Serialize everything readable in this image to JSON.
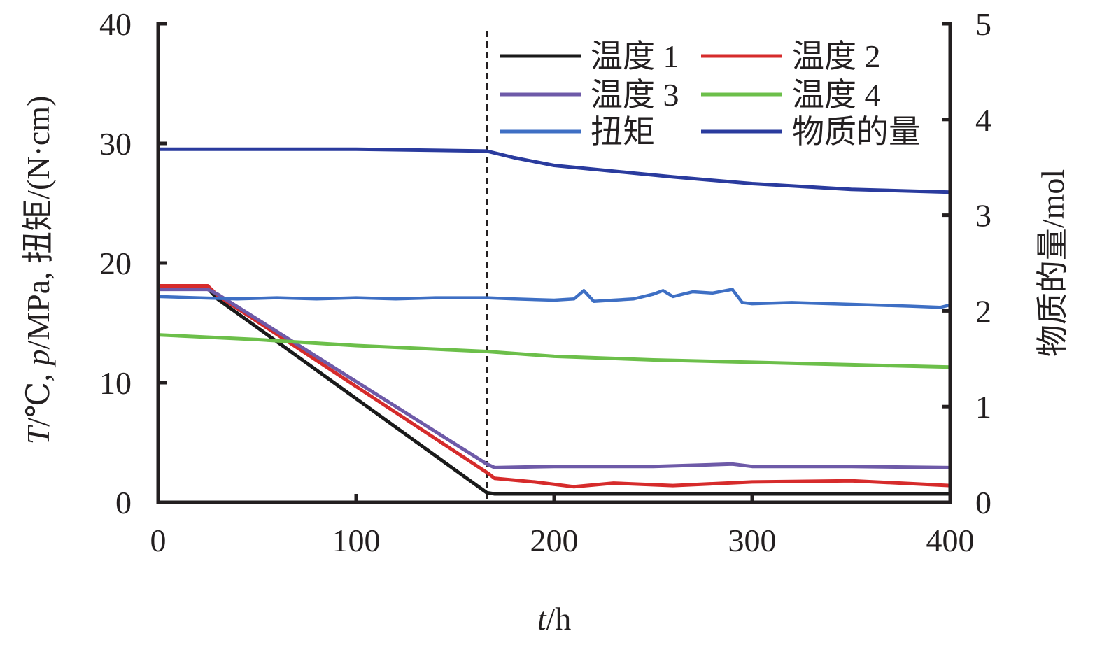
{
  "chart_data": {
    "type": "line",
    "xlabel_var": "t",
    "xlabel_unit": "/h",
    "ylabel_parts": [
      "T",
      "/℃, ",
      "p",
      "/MPa, 扭矩/(N·cm)"
    ],
    "y2label": "物质的量/mol",
    "xlim": [
      0,
      400
    ],
    "ylim": [
      0,
      40
    ],
    "y2lim": [
      0,
      5
    ],
    "x_ticks": [
      "0",
      "100",
      "200",
      "300",
      "400"
    ],
    "y_ticks": [
      "0",
      "10",
      "20",
      "30",
      "40"
    ],
    "y2_ticks": [
      "0",
      "1",
      "2",
      "3",
      "4",
      "5"
    ],
    "grid": false,
    "legend_position": "top-right",
    "annotations": [
      {
        "type": "vline",
        "x": 166
      }
    ],
    "series": [
      {
        "name": "温度 1",
        "axis": "left",
        "color": "#1a1a1a",
        "x": [
          0,
          25,
          30,
          166,
          170,
          200,
          250,
          300,
          350,
          400
        ],
        "y": [
          17.9,
          17.9,
          17.0,
          0.8,
          0.7,
          0.7,
          0.7,
          0.7,
          0.7,
          0.7
        ]
      },
      {
        "name": "温度 2",
        "axis": "left",
        "color": "#d62b2b",
        "x": [
          0,
          25,
          30,
          166,
          170,
          190,
          210,
          230,
          260,
          300,
          350,
          400
        ],
        "y": [
          18.1,
          18.1,
          17.3,
          2.5,
          2.0,
          1.7,
          1.3,
          1.6,
          1.4,
          1.7,
          1.8,
          1.4
        ]
      },
      {
        "name": "温度 3",
        "axis": "left",
        "color": "#6e5aa8",
        "x": [
          0,
          25,
          30,
          166,
          170,
          200,
          250,
          290,
          300,
          350,
          400
        ],
        "y": [
          17.8,
          17.8,
          17.4,
          3.2,
          2.9,
          3.0,
          3.0,
          3.2,
          3.0,
          3.0,
          2.9
        ]
      },
      {
        "name": "温度 4",
        "axis": "left",
        "color": "#6cbf4a",
        "x": [
          0,
          50,
          100,
          166,
          200,
          250,
          300,
          350,
          400
        ],
        "y": [
          14.0,
          13.6,
          13.1,
          12.6,
          12.2,
          11.9,
          11.7,
          11.5,
          11.3
        ]
      },
      {
        "name": "扭矩",
        "axis": "left",
        "color": "#3e6fc4",
        "x": [
          0,
          20,
          40,
          60,
          80,
          100,
          120,
          140,
          166,
          180,
          200,
          210,
          215,
          220,
          230,
          240,
          250,
          255,
          260,
          270,
          280,
          290,
          295,
          300,
          320,
          340,
          360,
          380,
          395,
          400
        ],
        "y": [
          17.2,
          17.1,
          17.0,
          17.1,
          17.0,
          17.1,
          17.0,
          17.1,
          17.1,
          17.0,
          16.9,
          17.0,
          17.7,
          16.8,
          16.9,
          17.0,
          17.4,
          17.7,
          17.2,
          17.6,
          17.5,
          17.8,
          16.7,
          16.6,
          16.7,
          16.6,
          16.5,
          16.4,
          16.3,
          16.5
        ]
      },
      {
        "name": "物质的量",
        "axis": "right",
        "color": "#2a3b9e",
        "x": [
          0,
          50,
          100,
          166,
          180,
          200,
          230,
          260,
          300,
          350,
          400
        ],
        "y": [
          3.69,
          3.69,
          3.69,
          3.67,
          3.6,
          3.52,
          3.46,
          3.4,
          3.33,
          3.27,
          3.24
        ]
      }
    ]
  }
}
